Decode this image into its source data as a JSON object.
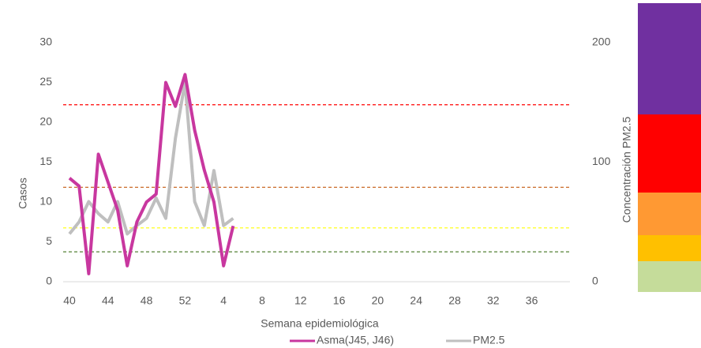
{
  "chart_data": {
    "type": "line",
    "categories": [
      "40",
      null,
      null,
      null,
      "44",
      null,
      null,
      null,
      "48",
      null,
      null,
      null,
      "52",
      null,
      null,
      null,
      "4",
      null,
      null,
      null,
      "8",
      null,
      null,
      null,
      "12",
      null,
      null,
      null,
      "16",
      null,
      null,
      null,
      "20",
      null,
      null,
      null,
      "24",
      null,
      null,
      null,
      "28",
      null,
      null,
      null,
      "32",
      null,
      null,
      null,
      "36",
      null,
      null,
      null
    ],
    "x_label": "Semana epidemiológica",
    "y_label": "Casos",
    "y2_label": "Concentración PM2.5",
    "ylim": [
      0,
      30
    ],
    "yticks": [
      0,
      5,
      10,
      15,
      20,
      25,
      30
    ],
    "y2lim": [
      0,
      200
    ],
    "y2ticks": [
      0,
      100,
      200
    ],
    "series": [
      {
        "name": "Asma(J45, J46)",
        "color": "#c8379f",
        "values": [
          13,
          12,
          1,
          16,
          12.5,
          9,
          2,
          7.5,
          10,
          11,
          25,
          22,
          26,
          19,
          14,
          10,
          2,
          7,
          null,
          null,
          null,
          null,
          null,
          null,
          null,
          null,
          null,
          null,
          null,
          null,
          null,
          null,
          null,
          null,
          null,
          null,
          null,
          null,
          null,
          null,
          null,
          null,
          null,
          null,
          null,
          null,
          null,
          null,
          null,
          null,
          null,
          null
        ]
      },
      {
        "name": "PM2.5",
        "color": "#bfbfbf",
        "axis": "y2",
        "values": [
          40,
          50,
          67,
          57,
          50,
          67,
          40,
          47,
          53,
          70,
          53,
          120,
          167,
          67,
          47,
          93,
          47,
          53,
          null,
          null,
          null,
          null,
          null,
          null,
          null,
          null,
          null,
          null,
          null,
          null,
          null,
          null,
          null,
          null,
          null,
          null,
          null,
          null,
          null,
          null,
          null,
          null,
          null,
          null,
          null,
          null,
          null,
          null,
          null,
          null,
          null,
          null
        ]
      }
    ],
    "thresholds": [
      {
        "value": 148,
        "color": "#ff0000",
        "axis": "y2"
      },
      {
        "value": 79,
        "color": "#c55a11",
        "axis": "y2"
      },
      {
        "value": 45,
        "color": "#ffff00",
        "axis": "y2"
      },
      {
        "value": 25,
        "color": "#548235",
        "axis": "y2"
      }
    ]
  }
}
